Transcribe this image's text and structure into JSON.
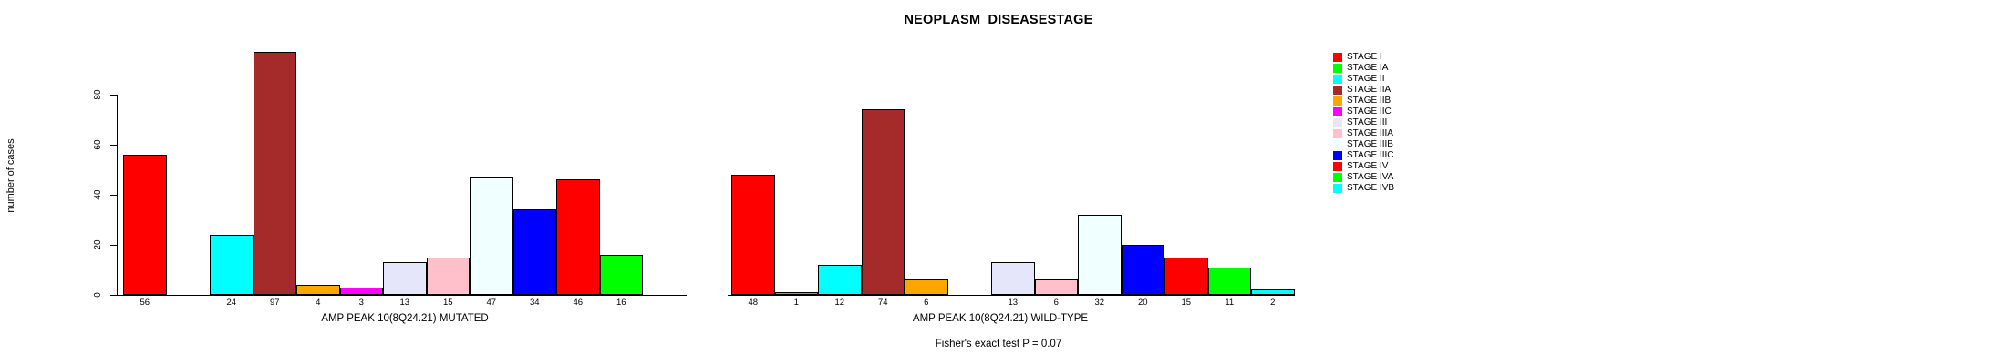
{
  "title": "NEOPLASM_DISEASESTAGE",
  "annotation": "Fisher's exact test P = 0.07",
  "chart_data": [
    {
      "type": "bar",
      "title": "NEOPLASM_DISEASESTAGE",
      "xlabel": "AMP PEAK 10(8Q24.21) MUTATED",
      "ylabel": "number of cases",
      "categories": [
        "STAGE I",
        "STAGE IA",
        "STAGE II",
        "STAGE IIA",
        "STAGE IIB",
        "STAGE IIC",
        "STAGE III",
        "STAGE IIIA",
        "STAGE IIIB",
        "STAGE IIIC",
        "STAGE IV",
        "STAGE IVA",
        "STAGE IVB"
      ],
      "values": [
        56,
        0,
        24,
        97,
        4,
        3,
        13,
        15,
        47,
        34,
        46,
        16,
        0
      ],
      "colors": [
        "#FF0000",
        "#00FF00",
        "#00FFFF",
        "#A52A2A",
        "#FFA500",
        "#FF00FF",
        "#E6E6FA",
        "#FFC0CB",
        "#F0FFFF",
        "#0000FF",
        "#FF0000",
        "#00FF00",
        "#00FFFF"
      ],
      "ylim": [
        0,
        97
      ],
      "yticks": [
        0,
        20,
        40,
        60,
        80
      ],
      "grid": false,
      "legend_position": "right",
      "note": "bars with value 0 are drawn empty with no numeric label"
    },
    {
      "type": "bar",
      "title": "NEOPLASM_DISEASESTAGE",
      "xlabel": "AMP PEAK 10(8Q24.21) WILD-TYPE",
      "ylabel": "number of cases",
      "categories": [
        "STAGE I",
        "STAGE IA",
        "STAGE II",
        "STAGE IIA",
        "STAGE IIB",
        "STAGE IIC",
        "STAGE III",
        "STAGE IIIA",
        "STAGE IIIB",
        "STAGE IIIC",
        "STAGE IV",
        "STAGE IVA",
        "STAGE IVB"
      ],
      "values": [
        48,
        1,
        12,
        74,
        6,
        0,
        13,
        6,
        32,
        20,
        15,
        11,
        2
      ],
      "colors": [
        "#FF0000",
        "#00FF00",
        "#00FFFF",
        "#A52A2A",
        "#FFA500",
        "#FF00FF",
        "#E6E6FA",
        "#FFC0CB",
        "#F0FFFF",
        "#0000FF",
        "#FF0000",
        "#00FF00",
        "#00FFFF"
      ],
      "ylim": [
        0,
        97
      ],
      "yticks": [
        0,
        20,
        40,
        60,
        80
      ],
      "grid": false,
      "legend_position": "right",
      "note": "bars with value 0 are drawn empty with no numeric label"
    }
  ],
  "legend": {
    "items": [
      {
        "label": "STAGE I",
        "color": "#FF0000"
      },
      {
        "label": "STAGE IA",
        "color": "#00FF00"
      },
      {
        "label": "STAGE II",
        "color": "#00FFFF"
      },
      {
        "label": "STAGE IIA",
        "color": "#A52A2A"
      },
      {
        "label": "STAGE IIB",
        "color": "#FFA500"
      },
      {
        "label": "STAGE IIC",
        "color": "#FF00FF"
      },
      {
        "label": "STAGE III",
        "color": "#E6E6FA"
      },
      {
        "label": "STAGE IIIA",
        "color": "#FFC0CB"
      },
      {
        "label": "STAGE IIIB",
        "color": "#F0FFFF"
      },
      {
        "label": "STAGE IIIC",
        "color": "#0000FF"
      },
      {
        "label": "STAGE IV",
        "color": "#FF0000"
      },
      {
        "label": "STAGE IVA",
        "color": "#00FF00"
      },
      {
        "label": "STAGE IVB",
        "color": "#00FFFF"
      }
    ]
  }
}
